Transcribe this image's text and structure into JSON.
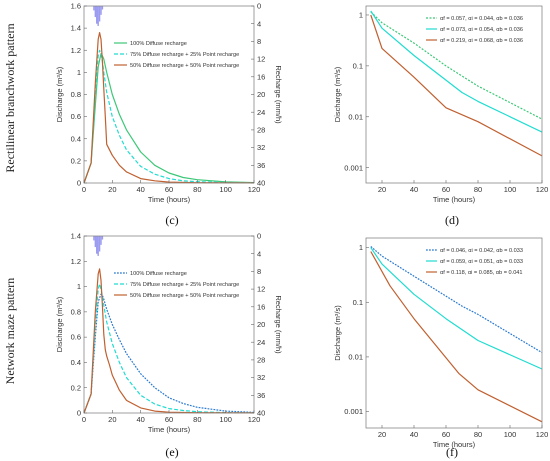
{
  "row_labels": [
    "Rectilinear branchwork pattern",
    "Network maze pattern"
  ],
  "panel_labels": [
    "(c)",
    "(d)",
    "(e)",
    "(f)"
  ],
  "colors": {
    "diffuse100": "#3cc878",
    "diffuse75": "#20dcd0",
    "diffuse50": "#c06030",
    "blue100": "#2a7ad0",
    "rain": "#9a9af0"
  },
  "chart_data": [
    {
      "id": "c",
      "type": "line",
      "xlabel": "Time (hours)",
      "ylabel": "Discharge (m³/s)",
      "y2label": "Recharge (mm/h)",
      "xlim": [
        0,
        120
      ],
      "ylim": [
        0,
        1.6
      ],
      "y2lim": [
        40,
        0
      ],
      "xticks": [
        0,
        20,
        40,
        60,
        80,
        100,
        120
      ],
      "yticks": [
        0,
        0.2,
        0.4,
        0.6,
        0.8,
        1,
        1.2,
        1.4,
        1.6
      ],
      "y2ticks": [
        0,
        4,
        8,
        12,
        16,
        20,
        24,
        28,
        32,
        36,
        40
      ],
      "grid": false,
      "legend_position": "top-right",
      "recharge": {
        "x": [
          7,
          8,
          9,
          10,
          11,
          12,
          13
        ],
        "values": [
          1.0,
          2.5,
          4.0,
          4.5,
          3.5,
          2.0,
          0.8
        ]
      },
      "series": [
        {
          "name": "100% Diffuse recharge",
          "color": "#3cc878",
          "dash": "",
          "x": [
            0,
            5,
            8,
            10,
            12,
            13,
            14,
            16,
            20,
            25,
            30,
            40,
            50,
            60,
            70,
            80,
            100,
            120
          ],
          "values": [
            0,
            0.18,
            0.7,
            1.05,
            1.17,
            1.15,
            1.12,
            1.0,
            0.8,
            0.62,
            0.48,
            0.28,
            0.16,
            0.09,
            0.05,
            0.03,
            0.01,
            0.004
          ]
        },
        {
          "name": "75% Diffuse recharge + 25% Point recharge",
          "color": "#20dcd0",
          "dash": "4,2",
          "x": [
            0,
            5,
            8,
            10,
            11,
            12,
            13,
            14,
            16,
            20,
            25,
            30,
            40,
            50,
            60,
            70,
            80,
            100,
            120
          ],
          "values": [
            0,
            0.18,
            0.8,
            1.15,
            1.2,
            1.17,
            1.1,
            1.0,
            0.82,
            0.6,
            0.43,
            0.3,
            0.15,
            0.08,
            0.04,
            0.02,
            0.012,
            0.004,
            0.002
          ]
        },
        {
          "name": "50% Diffuse recharge + 50% Point recharge",
          "color": "#c06030",
          "dash": "",
          "x": [
            0,
            5,
            8,
            10,
            11,
            12,
            13,
            14,
            15,
            16,
            18,
            20,
            25,
            30,
            40,
            50,
            60,
            80,
            120
          ],
          "values": [
            0,
            0.18,
            0.9,
            1.3,
            1.36,
            1.3,
            1.1,
            0.85,
            0.6,
            0.35,
            0.3,
            0.25,
            0.16,
            0.1,
            0.04,
            0.02,
            0.008,
            0.003,
            0.001
          ]
        }
      ]
    },
    {
      "id": "d",
      "type": "line",
      "scale": "log",
      "xlabel": "Time (hours)",
      "ylabel": "Discharge (m³/s)",
      "xlim": [
        10,
        120
      ],
      "ylim": [
        0.0005,
        1.5
      ],
      "xticks": [
        20,
        40,
        60,
        80,
        100,
        120
      ],
      "yticks": [
        0.001,
        0.01,
        0.1,
        1
      ],
      "ytick_labels": [
        "0.001",
        "0.01",
        "0.1",
        "1"
      ],
      "grid": false,
      "legend_position": "top-right",
      "series": [
        {
          "name": "αf = 0.057, αi = 0.044, αb = 0.036",
          "color": "#3cc878",
          "dash": "2,1.5",
          "x": [
            13,
            20,
            40,
            60,
            80,
            120
          ],
          "values": [
            1.15,
            0.7,
            0.28,
            0.1,
            0.04,
            0.009
          ]
        },
        {
          "name": "αf = 0.073, αi = 0.054, αb = 0.036",
          "color": "#20dcd0",
          "dash": "",
          "x": [
            13,
            20,
            40,
            70,
            80,
            120
          ],
          "values": [
            1.2,
            0.55,
            0.16,
            0.03,
            0.02,
            0.005
          ]
        },
        {
          "name": "αf = 0.219, αi = 0.068, αb = 0.036",
          "color": "#c06030",
          "dash": "",
          "x": [
            13,
            20,
            40,
            60,
            80,
            120
          ],
          "values": [
            1.0,
            0.22,
            0.06,
            0.015,
            0.008,
            0.0017
          ]
        }
      ]
    },
    {
      "id": "e",
      "type": "line",
      "xlabel": "Time (hours)",
      "ylabel": "Discharge (m³/s)",
      "y2label": "Recharge (mm/h)",
      "xlim": [
        0,
        120
      ],
      "ylim": [
        0,
        1.4
      ],
      "y2lim": [
        40,
        0
      ],
      "xticks": [
        0,
        20,
        40,
        60,
        80,
        100,
        120
      ],
      "yticks": [
        0,
        0.2,
        0.4,
        0.6,
        0.8,
        1,
        1.2,
        1.4
      ],
      "y2ticks": [
        0,
        4,
        8,
        12,
        16,
        20,
        24,
        28,
        32,
        36,
        40
      ],
      "grid": false,
      "legend_position": "top-right",
      "recharge": {
        "x": [
          7,
          8,
          9,
          10,
          11,
          12,
          13
        ],
        "values": [
          1.0,
          2.5,
          4.0,
          4.5,
          3.5,
          2.0,
          0.8
        ]
      },
      "series": [
        {
          "name": "100% Diffuse recharge",
          "color": "#2a7ad0",
          "dash": "1.8,1.2",
          "x": [
            0,
            5,
            8,
            10,
            12,
            13,
            14,
            16,
            20,
            25,
            30,
            40,
            50,
            60,
            70,
            80,
            100,
            120
          ],
          "values": [
            0,
            0.15,
            0.6,
            0.88,
            0.94,
            0.93,
            0.9,
            0.82,
            0.7,
            0.58,
            0.47,
            0.31,
            0.2,
            0.12,
            0.075,
            0.045,
            0.015,
            0.005
          ]
        },
        {
          "name": "75% Diffuse recharge + 25% Point recharge",
          "color": "#20dcd0",
          "dash": "4,2",
          "x": [
            0,
            5,
            8,
            10,
            11,
            12,
            13,
            14,
            16,
            20,
            25,
            30,
            40,
            50,
            60,
            70,
            80,
            100,
            120
          ],
          "values": [
            0,
            0.15,
            0.7,
            0.98,
            1.02,
            0.98,
            0.92,
            0.85,
            0.72,
            0.55,
            0.4,
            0.28,
            0.14,
            0.07,
            0.035,
            0.02,
            0.01,
            0.003,
            0.001
          ]
        },
        {
          "name": "50% Diffuse recharge + 50% Point recharge",
          "color": "#c06030",
          "dash": "",
          "x": [
            0,
            5,
            8,
            10,
            11,
            12,
            13,
            14,
            15,
            16,
            18,
            20,
            25,
            30,
            40,
            50,
            60,
            80,
            120
          ],
          "values": [
            0,
            0.15,
            0.8,
            1.1,
            1.14,
            1.05,
            0.85,
            0.62,
            0.5,
            0.45,
            0.38,
            0.3,
            0.18,
            0.1,
            0.04,
            0.015,
            0.006,
            0.002,
            0.0005
          ]
        }
      ]
    },
    {
      "id": "f",
      "type": "line",
      "scale": "log",
      "xlabel": "Time (hours)",
      "ylabel": "Discharge (m³/s)",
      "xlim": [
        10,
        120
      ],
      "ylim": [
        0.0005,
        1.5
      ],
      "xticks": [
        20,
        40,
        60,
        80,
        100,
        120
      ],
      "yticks": [
        0.001,
        0.01,
        0.1,
        1
      ],
      "ytick_labels": [
        "0.001",
        "0.01",
        "0.1",
        "1"
      ],
      "grid": false,
      "legend_position": "top-right",
      "series": [
        {
          "name": "αf = 0.046, αi = 0.042, αb = 0.033",
          "color": "#2a7ad0",
          "dash": "1.8,1.2",
          "x": [
            13,
            20,
            40,
            70,
            80,
            120
          ],
          "values": [
            1.05,
            0.7,
            0.3,
            0.085,
            0.06,
            0.012
          ]
        },
        {
          "name": "αf = 0.059, αi = 0.051, αb = 0.033",
          "color": "#20dcd0",
          "dash": "",
          "x": [
            13,
            20,
            40,
            60,
            80,
            120
          ],
          "values": [
            1.0,
            0.5,
            0.14,
            0.05,
            0.02,
            0.006
          ]
        },
        {
          "name": "αf = 0.118, αi = 0.085, αb = 0.041",
          "color": "#c06030",
          "dash": "",
          "x": [
            13,
            25,
            40,
            68,
            80,
            120
          ],
          "values": [
            0.85,
            0.2,
            0.05,
            0.005,
            0.0025,
            0.00065
          ]
        }
      ]
    }
  ]
}
